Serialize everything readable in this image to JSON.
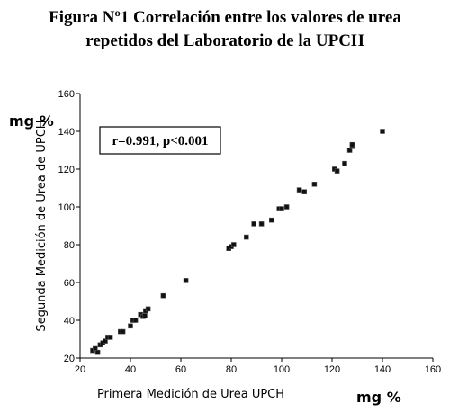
{
  "chart_data": {
    "type": "scatter",
    "title": [
      "Figura Nº1 Correlación entre los valores de urea",
      "repetidos del Laboratorio de la UPCH"
    ],
    "x_label": "Primera Medición de Urea UPCH",
    "y_label": "Segunda Medición de Urea de UPCH",
    "x_unit": "mg %",
    "y_unit": "mg %",
    "annotation": "r=0.991, p<0.001",
    "color": "#111111",
    "x": [
      25,
      26,
      27,
      28,
      29,
      30,
      31,
      32,
      36,
      37,
      40,
      41,
      42,
      44,
      45,
      46,
      47,
      45.7,
      53,
      62,
      79,
      80,
      81,
      86,
      89,
      92,
      96,
      99,
      100,
      102,
      107,
      109,
      113,
      121,
      122,
      125,
      127,
      128,
      128,
      140
    ],
    "values": [
      24,
      25,
      23,
      27,
      28,
      29,
      31,
      31,
      34,
      34,
      37,
      40,
      40,
      43,
      42,
      45,
      46,
      42.4,
      53,
      61,
      78,
      79,
      80,
      84,
      91,
      91,
      93,
      99,
      99,
      100,
      109,
      108,
      112,
      120,
      119,
      123,
      130,
      132,
      133,
      140
    ],
    "xlim": [
      20,
      160
    ],
    "xticks": [
      20,
      40,
      60,
      80,
      100,
      120,
      140,
      160
    ],
    "ylim": [
      20,
      160
    ],
    "yticks": [
      20,
      40,
      60,
      80,
      100,
      120,
      140,
      160
    ]
  }
}
